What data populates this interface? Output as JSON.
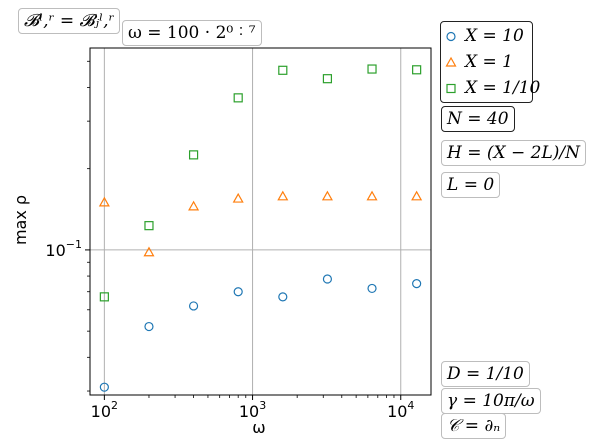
{
  "chart_data": {
    "type": "scatter",
    "xscale": "log",
    "yscale": "log",
    "xlim": [
      80,
      16000
    ],
    "ylim": [
      0.029,
      0.56
    ],
    "grid": true,
    "xlabel": "ω",
    "ylabel": "max ρ",
    "x": [
      100,
      200,
      400,
      800,
      1600,
      3200,
      6400,
      12800
    ],
    "xticks": [
      {
        "value": 100,
        "label": "10",
        "exp": "2"
      },
      {
        "value": 1000,
        "label": "10",
        "exp": "3"
      },
      {
        "value": 10000,
        "label": "10",
        "exp": "4"
      }
    ],
    "yticks": [
      {
        "value": 0.1,
        "label": "10",
        "exp": "−1"
      }
    ],
    "series": [
      {
        "name": "X = 10",
        "marker": "circle",
        "color": "#1f77b4",
        "values": [
          0.031,
          0.052,
          0.062,
          0.07,
          0.067,
          0.078,
          0.072,
          0.075
        ]
      },
      {
        "name": "X = 1",
        "marker": "triangle",
        "color": "#ff7f0e",
        "values": [
          0.15,
          0.098,
          0.145,
          0.155,
          0.158,
          0.158,
          0.158,
          0.158
        ]
      },
      {
        "name": "X = 1/10",
        "marker": "square",
        "color": "#2ca02c",
        "values": [
          0.067,
          0.123,
          0.225,
          0.366,
          0.463,
          0.431,
          0.468,
          0.465
        ]
      }
    ],
    "legend_position": "right"
  },
  "annotations": {
    "top_left": "𝓑ˡ,ʳ = 𝓑ⱼˡ,ʳ",
    "omega_formula": "ω = 100 · 2⁰ ˸ ⁷",
    "n": "N = 40",
    "h": "H = (X − 2L)/N",
    "l": "L = 0",
    "d": "D = 1/10",
    "gamma": "γ = 10π/ω",
    "c": "𝒞 = ∂ₙ"
  }
}
